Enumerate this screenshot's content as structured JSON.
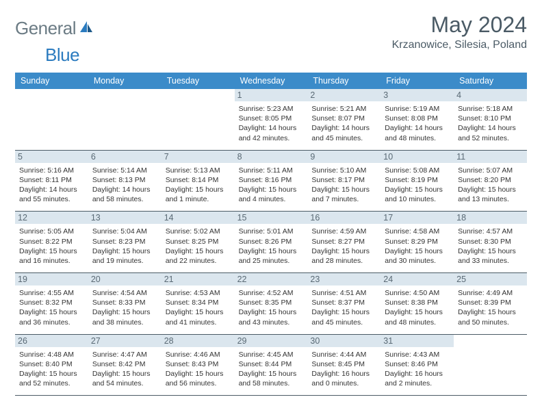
{
  "brand": {
    "part1": "General",
    "part2": "Blue"
  },
  "title": "May 2024",
  "location": "Krzanowice, Silesia, Poland",
  "colors": {
    "header_bg": "#3b8bc9",
    "daynum_bg": "#dbe6ee",
    "rule": "#4a5a65",
    "logo_gray": "#6b7b84",
    "logo_blue": "#2b7bbf"
  },
  "weekdays": [
    "Sunday",
    "Monday",
    "Tuesday",
    "Wednesday",
    "Thursday",
    "Friday",
    "Saturday"
  ],
  "weeks": [
    [
      null,
      null,
      null,
      {
        "n": "1",
        "sr": "5:23 AM",
        "ss": "8:05 PM",
        "dl": "14 hours and 42 minutes."
      },
      {
        "n": "2",
        "sr": "5:21 AM",
        "ss": "8:07 PM",
        "dl": "14 hours and 45 minutes."
      },
      {
        "n": "3",
        "sr": "5:19 AM",
        "ss": "8:08 PM",
        "dl": "14 hours and 48 minutes."
      },
      {
        "n": "4",
        "sr": "5:18 AM",
        "ss": "8:10 PM",
        "dl": "14 hours and 52 minutes."
      }
    ],
    [
      {
        "n": "5",
        "sr": "5:16 AM",
        "ss": "8:11 PM",
        "dl": "14 hours and 55 minutes."
      },
      {
        "n": "6",
        "sr": "5:14 AM",
        "ss": "8:13 PM",
        "dl": "14 hours and 58 minutes."
      },
      {
        "n": "7",
        "sr": "5:13 AM",
        "ss": "8:14 PM",
        "dl": "15 hours and 1 minute."
      },
      {
        "n": "8",
        "sr": "5:11 AM",
        "ss": "8:16 PM",
        "dl": "15 hours and 4 minutes."
      },
      {
        "n": "9",
        "sr": "5:10 AM",
        "ss": "8:17 PM",
        "dl": "15 hours and 7 minutes."
      },
      {
        "n": "10",
        "sr": "5:08 AM",
        "ss": "8:19 PM",
        "dl": "15 hours and 10 minutes."
      },
      {
        "n": "11",
        "sr": "5:07 AM",
        "ss": "8:20 PM",
        "dl": "15 hours and 13 minutes."
      }
    ],
    [
      {
        "n": "12",
        "sr": "5:05 AM",
        "ss": "8:22 PM",
        "dl": "15 hours and 16 minutes."
      },
      {
        "n": "13",
        "sr": "5:04 AM",
        "ss": "8:23 PM",
        "dl": "15 hours and 19 minutes."
      },
      {
        "n": "14",
        "sr": "5:02 AM",
        "ss": "8:25 PM",
        "dl": "15 hours and 22 minutes."
      },
      {
        "n": "15",
        "sr": "5:01 AM",
        "ss": "8:26 PM",
        "dl": "15 hours and 25 minutes."
      },
      {
        "n": "16",
        "sr": "4:59 AM",
        "ss": "8:27 PM",
        "dl": "15 hours and 28 minutes."
      },
      {
        "n": "17",
        "sr": "4:58 AM",
        "ss": "8:29 PM",
        "dl": "15 hours and 30 minutes."
      },
      {
        "n": "18",
        "sr": "4:57 AM",
        "ss": "8:30 PM",
        "dl": "15 hours and 33 minutes."
      }
    ],
    [
      {
        "n": "19",
        "sr": "4:55 AM",
        "ss": "8:32 PM",
        "dl": "15 hours and 36 minutes."
      },
      {
        "n": "20",
        "sr": "4:54 AM",
        "ss": "8:33 PM",
        "dl": "15 hours and 38 minutes."
      },
      {
        "n": "21",
        "sr": "4:53 AM",
        "ss": "8:34 PM",
        "dl": "15 hours and 41 minutes."
      },
      {
        "n": "22",
        "sr": "4:52 AM",
        "ss": "8:35 PM",
        "dl": "15 hours and 43 minutes."
      },
      {
        "n": "23",
        "sr": "4:51 AM",
        "ss": "8:37 PM",
        "dl": "15 hours and 45 minutes."
      },
      {
        "n": "24",
        "sr": "4:50 AM",
        "ss": "8:38 PM",
        "dl": "15 hours and 48 minutes."
      },
      {
        "n": "25",
        "sr": "4:49 AM",
        "ss": "8:39 PM",
        "dl": "15 hours and 50 minutes."
      }
    ],
    [
      {
        "n": "26",
        "sr": "4:48 AM",
        "ss": "8:40 PM",
        "dl": "15 hours and 52 minutes."
      },
      {
        "n": "27",
        "sr": "4:47 AM",
        "ss": "8:42 PM",
        "dl": "15 hours and 54 minutes."
      },
      {
        "n": "28",
        "sr": "4:46 AM",
        "ss": "8:43 PM",
        "dl": "15 hours and 56 minutes."
      },
      {
        "n": "29",
        "sr": "4:45 AM",
        "ss": "8:44 PM",
        "dl": "15 hours and 58 minutes."
      },
      {
        "n": "30",
        "sr": "4:44 AM",
        "ss": "8:45 PM",
        "dl": "16 hours and 0 minutes."
      },
      {
        "n": "31",
        "sr": "4:43 AM",
        "ss": "8:46 PM",
        "dl": "16 hours and 2 minutes."
      },
      null
    ]
  ]
}
